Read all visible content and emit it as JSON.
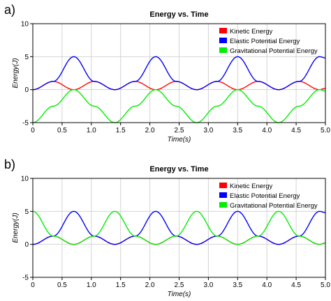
{
  "chart_data": [
    {
      "panel": "a)",
      "type": "line",
      "title": "Energy vs. Time",
      "xlabel": "Time(s)",
      "ylabel": "Energy(J)",
      "xlim": [
        0,
        5.0
      ],
      "ylim": [
        -5,
        10
      ],
      "xticks": [
        "0",
        "0.5",
        "1.0",
        "1.5",
        "2.0",
        "2.5",
        "3.0",
        "3.5",
        "4.0",
        "4.5",
        "5.0"
      ],
      "yticks": [
        "-5",
        "0",
        "5",
        "10"
      ],
      "grid": true,
      "legend_position": "top-right",
      "series": [
        {
          "name": "Kinetic Energy",
          "color": "#ff0000",
          "x": [
            0,
            0.35,
            0.7,
            1.05,
            1.4,
            1.75,
            2.1,
            2.45,
            2.8,
            3.15,
            3.5,
            3.85,
            4.2,
            4.55,
            4.9,
            5.0
          ],
          "y": [
            0,
            1.25,
            0,
            1.25,
            0,
            1.25,
            0,
            1.25,
            0,
            1.25,
            0,
            1.25,
            0,
            1.25,
            0,
            0.2
          ]
        },
        {
          "name": "Elastic Potential Energy",
          "color": "#0000ff",
          "x": [
            0,
            0.35,
            0.7,
            1.05,
            1.4,
            1.75,
            2.1,
            2.45,
            2.8,
            3.15,
            3.5,
            3.85,
            4.2,
            4.55,
            4.9,
            5.0
          ],
          "y": [
            0,
            1.25,
            5,
            1.25,
            0,
            1.25,
            5,
            1.25,
            0,
            1.25,
            5,
            1.25,
            0,
            1.25,
            5,
            4.8
          ]
        },
        {
          "name": "Gravitational Potential Energy",
          "color": "#00ee00",
          "x": [
            0,
            0.35,
            0.7,
            1.05,
            1.4,
            1.75,
            2.1,
            2.45,
            2.8,
            3.15,
            3.5,
            3.85,
            4.2,
            4.55,
            4.9,
            5.0
          ],
          "y": [
            -5,
            -2.5,
            0,
            -2.5,
            -5,
            -2.5,
            0,
            -2.5,
            -5,
            -2.5,
            0,
            -2.5,
            -5,
            -2.5,
            0,
            -0.2
          ]
        }
      ]
    },
    {
      "panel": "b)",
      "type": "line",
      "title": "Energy vs. Time",
      "xlabel": "Time(s)",
      "ylabel": "Energy(J)",
      "xlim": [
        0,
        5.0
      ],
      "ylim": [
        -5,
        10
      ],
      "xticks": [
        "0",
        "0.5",
        "1.0",
        "1.5",
        "2.0",
        "2.5",
        "3.0",
        "3.5",
        "4.0",
        "4.5",
        "5.0"
      ],
      "yticks": [
        "-5",
        "0",
        "5",
        "10"
      ],
      "grid": true,
      "legend_position": "top-right",
      "series": [
        {
          "name": "Kinetic Energy",
          "color": "#ff0000",
          "x": [
            0,
            0.35,
            0.7,
            1.05,
            1.4,
            1.75,
            2.1,
            2.45,
            2.8,
            3.15,
            3.5,
            3.85,
            4.2,
            4.55,
            4.9,
            5.0
          ],
          "y": [
            0,
            1.25,
            0,
            1.25,
            0,
            1.25,
            0,
            1.25,
            0,
            1.25,
            0,
            1.25,
            0,
            1.25,
            0,
            0.2
          ]
        },
        {
          "name": "Elastic Potential Energy",
          "color": "#0000ff",
          "x": [
            0,
            0.35,
            0.7,
            1.05,
            1.4,
            1.75,
            2.1,
            2.45,
            2.8,
            3.15,
            3.5,
            3.85,
            4.2,
            4.55,
            4.9,
            5.0
          ],
          "y": [
            0,
            1.25,
            5,
            1.25,
            0,
            1.25,
            5,
            1.25,
            0,
            1.25,
            5,
            1.25,
            0,
            1.25,
            5,
            4.8
          ]
        },
        {
          "name": "Gravitational Potential Energy",
          "color": "#00ee00",
          "x": [
            0,
            0.35,
            0.7,
            1.05,
            1.4,
            1.75,
            2.1,
            2.45,
            2.8,
            3.15,
            3.5,
            3.85,
            4.2,
            4.55,
            4.9,
            5.0
          ],
          "y": [
            5,
            1.25,
            0,
            1.25,
            5,
            1.25,
            0,
            1.25,
            5,
            1.25,
            0,
            1.25,
            5,
            1.25,
            0,
            0.2
          ]
        }
      ]
    }
  ]
}
